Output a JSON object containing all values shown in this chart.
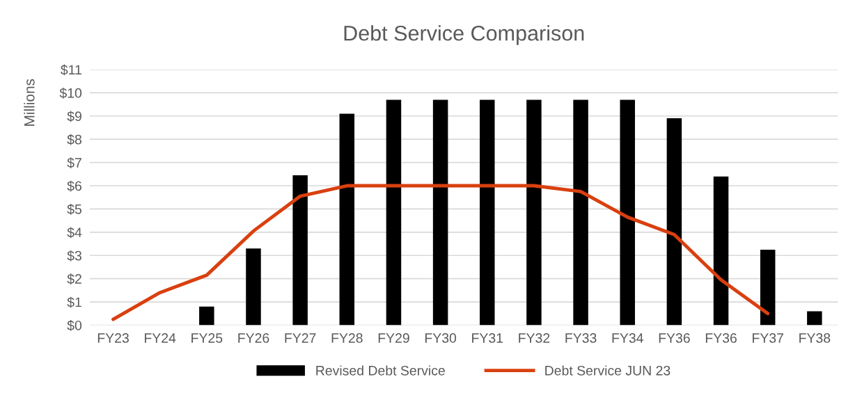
{
  "chart_data": {
    "type": "bar",
    "title": "Debt Service Comparison",
    "ylabel": "Millions",
    "categories": [
      "FY23",
      "FY24",
      "FY25",
      "FY26",
      "FY27",
      "FY28",
      "FY29",
      "FY30",
      "FY31",
      "FY32",
      "FY33",
      "FY34",
      "FY36",
      "FY36",
      "FY37",
      "FY38"
    ],
    "series": [
      {
        "name": "Revised Debt Service",
        "color": "#000000",
        "values": [
          null,
          null,
          0.8,
          3.3,
          6.45,
          9.1,
          9.7,
          9.7,
          9.7,
          9.7,
          9.7,
          9.7,
          8.9,
          6.4,
          3.25,
          0.6
        ]
      },
      {
        "name": "Debt Service JUN 23",
        "type": "line",
        "color": "#d9400f",
        "values": [
          0.25,
          1.4,
          2.15,
          4.05,
          5.55,
          6.0,
          6.0,
          6.0,
          6.0,
          6.0,
          5.75,
          4.65,
          3.9,
          1.95,
          0.5,
          null
        ]
      }
    ],
    "ylim": [
      0,
      11
    ],
    "yticks": [
      {
        "value": 0,
        "label": "$0"
      },
      {
        "value": 1,
        "label": "$1"
      },
      {
        "value": 2,
        "label": "$2"
      },
      {
        "value": 3,
        "label": "$3"
      },
      {
        "value": 4,
        "label": "$4"
      },
      {
        "value": 5,
        "label": "$5"
      },
      {
        "value": 6,
        "label": "$6"
      },
      {
        "value": 7,
        "label": "$7"
      },
      {
        "value": 8,
        "label": "$8"
      },
      {
        "value": 9,
        "label": "$9"
      },
      {
        "value": 10,
        "label": "$10"
      },
      {
        "value": 11,
        "label": "$11"
      }
    ],
    "grid": "y",
    "legend": "bottom",
    "marker": "none",
    "line_style": "solid"
  }
}
